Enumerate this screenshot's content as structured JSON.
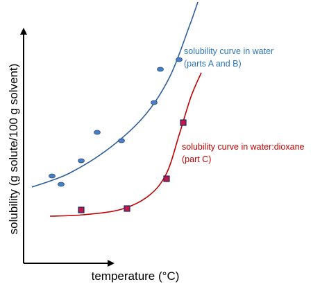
{
  "chart_data": {
    "type": "scatter",
    "xlabel": "temperature (°C)",
    "ylabel": "solubility (g solute/100 g solvent)",
    "x_ticks": "none",
    "y_ticks": "none",
    "grid": false,
    "series": [
      {
        "key": "water",
        "label_lines": [
          "solubility curve in water",
          "(parts A and B)"
        ],
        "color": "#2e5d9a",
        "fill": "#4a7ec4",
        "marker": "ellipse",
        "points": [
          [
            75,
            254
          ],
          [
            88,
            266
          ],
          [
            117,
            232
          ],
          [
            140,
            191
          ],
          [
            175,
            203
          ],
          [
            222,
            148
          ],
          [
            231,
            100
          ],
          [
            258,
            86
          ]
        ],
        "curve": [
          [
            46,
            270
          ],
          [
            100,
            250
          ],
          [
            160,
            212
          ],
          [
            210,
            165
          ],
          [
            245,
            110
          ],
          [
            272,
            40
          ],
          [
            285,
            3
          ]
        ]
      },
      {
        "key": "dioxane",
        "label_lines": [
          "solubility curve in water:dioxane",
          "(part C)"
        ],
        "color": "#c00000",
        "fill": "#c0184a",
        "marker": "square",
        "points": [
          [
            117,
            303
          ],
          [
            183,
            301
          ],
          [
            240,
            258
          ],
          [
            264,
            177
          ]
        ],
        "curve": [
          [
            72,
            312
          ],
          [
            120,
            310
          ],
          [
            175,
            302
          ],
          [
            215,
            282
          ],
          [
            240,
            250
          ],
          [
            258,
            195
          ],
          [
            275,
            140
          ],
          [
            290,
            105
          ]
        ]
      }
    ]
  }
}
